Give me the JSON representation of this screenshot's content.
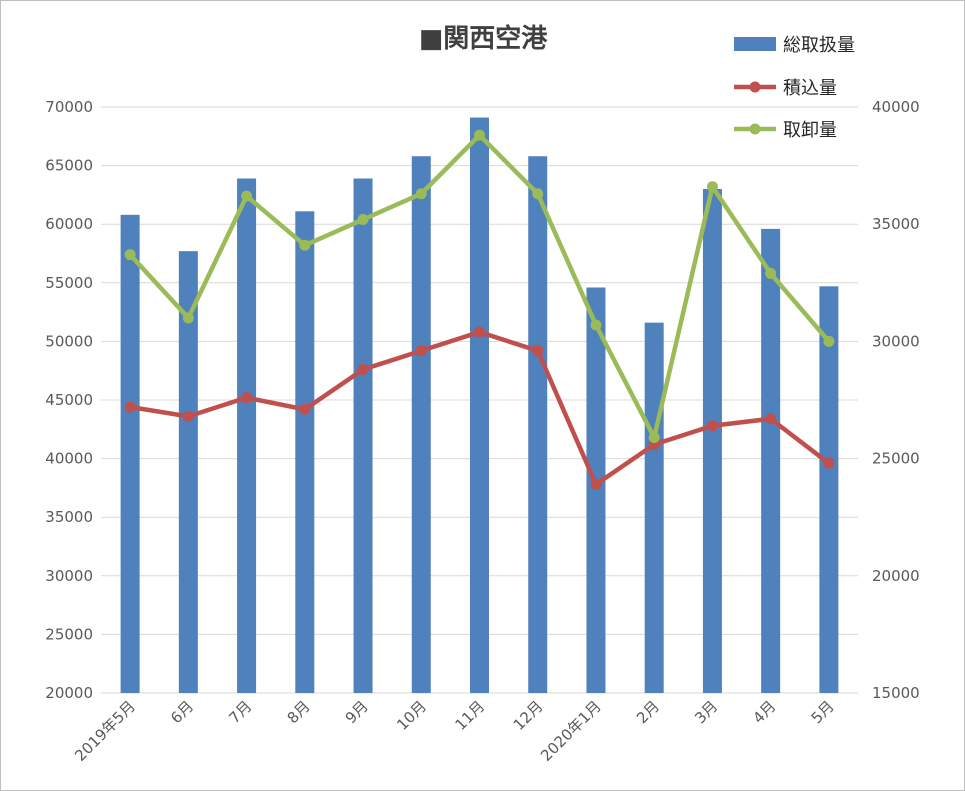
{
  "chart_data": {
    "type": "bar",
    "title": "■関西空港",
    "categories": [
      "2019年5月",
      "6月",
      "7月",
      "8月",
      "9月",
      "10月",
      "11月",
      "12月",
      "2020年1月",
      "2月",
      "3月",
      "4月",
      "5月"
    ],
    "y_left": {
      "min": 20000,
      "max": 70000,
      "step": 5000
    },
    "y_right": {
      "min": 15000,
      "max": 40000,
      "step": 5000
    },
    "legend_position": "top-right",
    "grid": true,
    "series": [
      {
        "name": "総取扱量",
        "type": "bar",
        "axis": "left",
        "color": "#4F81BD",
        "values": [
          60800,
          57700,
          63900,
          61100,
          63900,
          65800,
          69100,
          65800,
          54600,
          51600,
          63000,
          59600,
          54700
        ]
      },
      {
        "name": "積込量",
        "type": "line",
        "axis": "right",
        "color": "#C0504D",
        "values": [
          27200,
          26800,
          27600,
          27100,
          28800,
          29600,
          30400,
          29600,
          23900,
          25600,
          26400,
          26700,
          24800
        ]
      },
      {
        "name": "取卸量",
        "type": "line",
        "axis": "right",
        "color": "#9BBB59",
        "values": [
          33700,
          31000,
          36200,
          34100,
          35200,
          36300,
          38800,
          36300,
          30700,
          25900,
          36600,
          32900,
          30000
        ]
      }
    ]
  }
}
